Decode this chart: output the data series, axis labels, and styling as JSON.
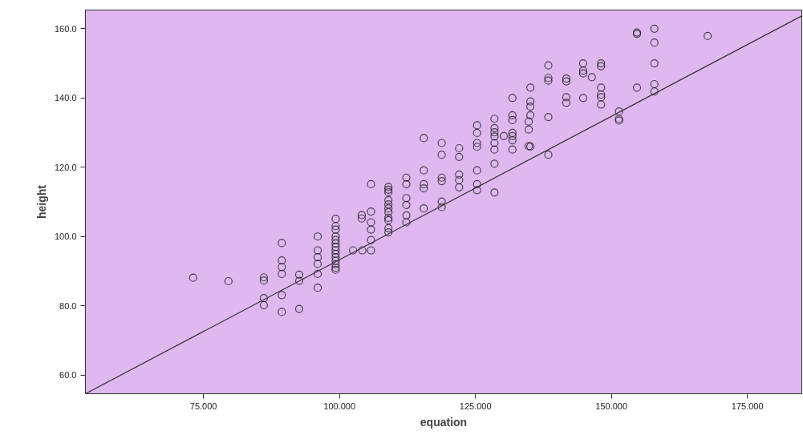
{
  "chart_data": {
    "type": "scatter",
    "xlabel": "equation",
    "ylabel": "height",
    "xlim": [
      53.3,
      185
    ],
    "ylim": [
      54.6,
      165.4
    ],
    "xticks": [
      {
        "value": 75,
        "label": "75.000"
      },
      {
        "value": 100,
        "label": "100.000"
      },
      {
        "value": 125,
        "label": "125.000"
      },
      {
        "value": 150,
        "label": "150.000"
      },
      {
        "value": 175,
        "label": "175.000"
      }
    ],
    "yticks": [
      {
        "value": 60,
        "label": "60.0"
      },
      {
        "value": 80,
        "label": "80.0"
      },
      {
        "value": 100,
        "label": "100.0"
      },
      {
        "value": 120,
        "label": "120.0"
      },
      {
        "value": 140,
        "label": "140.0"
      },
      {
        "value": 160,
        "label": "160.0"
      }
    ],
    "grid": false,
    "marker": "circle",
    "series": [
      {
        "color": "#222222",
        "x": [
          73.1,
          79.6,
          86.1,
          86.1,
          86.1,
          86.1,
          89.4,
          89.4,
          89.4,
          89.4,
          89.4,
          89.4,
          92.6,
          92.6,
          92.6,
          96.0,
          96.0,
          96.0,
          96.0,
          96.0,
          96.0,
          99.3,
          99.3,
          99.3,
          99.3,
          99.3,
          99.3,
          99.3,
          99.3,
          99.3,
          99.3,
          99.3,
          99.3,
          99.3,
          99.3,
          102.5,
          104.2,
          105.8,
          105.8,
          105.8,
          105.8,
          105.8,
          105.8,
          104.1,
          104.1,
          109.0,
          109.0,
          109.0,
          109.0,
          109.0,
          109.0,
          109.0,
          109.0,
          109.0,
          109.0,
          109.0,
          112.3,
          112.3,
          112.3,
          112.3,
          112.3,
          112.3,
          115.5,
          115.5,
          115.5,
          115.5,
          115.5,
          118.8,
          118.8,
          118.8,
          118.8,
          118.8,
          118.8,
          122.0,
          122.0,
          122.0,
          122.0,
          122.0,
          125.3,
          125.3,
          125.3,
          125.3,
          125.3,
          125.3,
          125.3,
          128.5,
          128.5,
          128.5,
          128.5,
          128.5,
          128.5,
          128.5,
          128.5,
          130.2,
          131.8,
          131.8,
          131.8,
          131.8,
          131.8,
          131.8,
          131.8,
          134.8,
          134.8,
          134.8,
          135.1,
          135.1,
          135.1,
          135.1,
          135.1,
          138.4,
          138.4,
          138.4,
          138.4,
          138.4,
          141.7,
          141.7,
          141.7,
          141.7,
          144.8,
          144.8,
          144.8,
          144.8,
          146.4,
          148.1,
          148.1,
          148.1,
          148.1,
          148.1,
          148.1,
          151.4,
          151.4,
          151.4,
          154.7,
          154.7,
          154.7,
          157.9,
          157.9,
          157.9,
          157.9,
          157.9,
          167.7
        ],
        "values": [
          88.1,
          87.1,
          88.2,
          87.3,
          82.2,
          80.2,
          98.1,
          93.1,
          91.2,
          89.2,
          83.1,
          78.2,
          89.0,
          87.2,
          79.1,
          100.0,
          96.0,
          94.0,
          92.1,
          89.2,
          85.2,
          105.1,
          103.0,
          102.0,
          100.0,
          99.0,
          98.0,
          97.0,
          96.0,
          95.0,
          94.0,
          93.0,
          92.0,
          91.0,
          90.4,
          96.0,
          96.0,
          96.0,
          99.0,
          102.0,
          104.1,
          107.2,
          115.1,
          106.2,
          105.2,
          114.3,
          113.5,
          112.8,
          110.5,
          109.3,
          108.1,
          107.0,
          105.4,
          104.7,
          102.4,
          101.2,
          117.0,
          115.1,
          111.1,
          109.1,
          106.1,
          104.1,
          128.4,
          119.1,
          115.1,
          113.9,
          108.1,
          127.0,
          123.6,
          117.0,
          116.0,
          110.1,
          108.5,
          125.5,
          123.0,
          117.9,
          116.3,
          114.2,
          132.1,
          129.9,
          127.0,
          125.9,
          119.1,
          115.1,
          113.4,
          134.0,
          131.3,
          130.1,
          128.9,
          127.0,
          125.1,
          121.0,
          112.7,
          129.0,
          140.0,
          135.0,
          133.6,
          129.9,
          129.0,
          127.8,
          125.1,
          133.2,
          130.9,
          126.1,
          143.0,
          139.0,
          137.5,
          135.0,
          126.0,
          149.4,
          145.8,
          145.0,
          134.5,
          123.6,
          145.6,
          144.8,
          140.2,
          138.6,
          150.0,
          147.9,
          147.1,
          140.0,
          146.0,
          150.0,
          149.2,
          143.0,
          141.0,
          140.2,
          138.1,
          136.1,
          134.0,
          133.5,
          158.9,
          158.5,
          143.0,
          160.0,
          156.0,
          150.0,
          144.0,
          141.9,
          157.9
        ]
      },
      {
        "type": "line",
        "color": "#333333",
        "marker": "none",
        "line_style": "solid",
        "x": [
          53.3,
          185
        ],
        "values": [
          54.6,
          163.7
        ]
      }
    ]
  }
}
